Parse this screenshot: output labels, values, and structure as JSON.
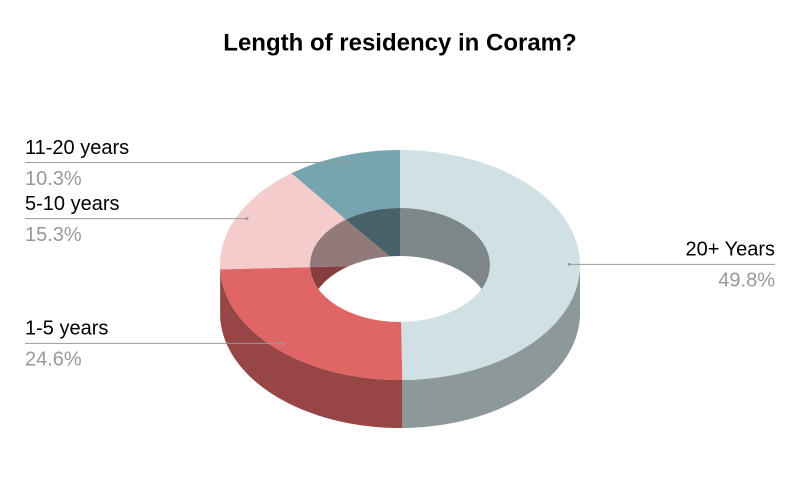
{
  "chart_data": {
    "type": "donut3d",
    "title": "Length of residency in Coram?",
    "categories": [
      "20+ Years",
      "1-5 years",
      "5-10 years",
      "11-20 years"
    ],
    "values": [
      49.8,
      24.6,
      15.3,
      10.3
    ],
    "value_labels": [
      "49.8%",
      "24.6%",
      "15.3%",
      "10.3%"
    ],
    "colors": [
      "#d0e0e3",
      "#e06666",
      "#f4cccc",
      "#76a5af"
    ]
  }
}
